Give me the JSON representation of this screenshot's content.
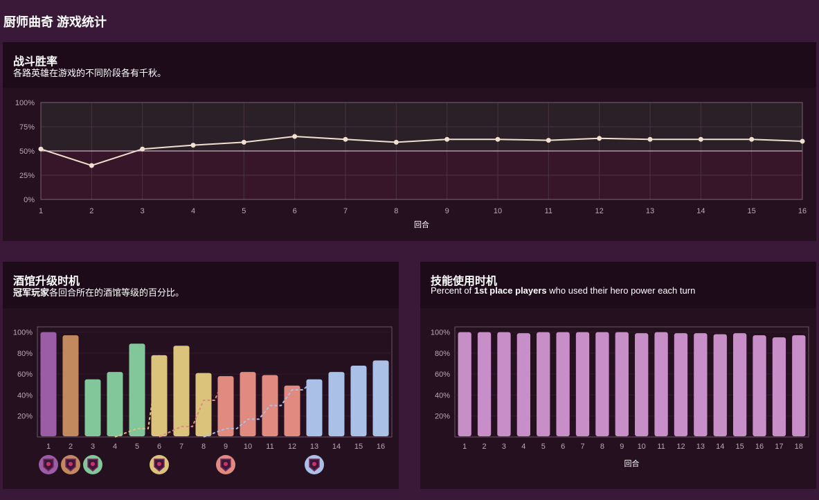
{
  "page": {
    "title": "厨师曲奇 游戏统计"
  },
  "colors": {
    "bg": "#3a1838",
    "panel": "#24101f",
    "panel_head": "#1d0b19",
    "line": "#f0e0d0",
    "tier_colors": [
      "#9a5da6",
      "#c2895f",
      "#82c79a",
      "#82c79a",
      "#82c79a",
      "#dcc37c",
      "#dcc37c",
      "#dcc37c",
      "#e08a80",
      "#e08a80",
      "#e08a80",
      "#e08a80",
      "#aac0e6",
      "#aac0e6",
      "#aac0e6",
      "#aac0e6"
    ],
    "hero_power": "#c88ec8"
  },
  "panels": {
    "winrate": {
      "title": "战斗胜率",
      "subtitle": "各路英雄在游戏的不同阶段各有千秋。"
    },
    "tavern": {
      "title": "酒馆升级时机",
      "subtitle_bold": "冠军玩家",
      "subtitle_rest": "各回合所在的酒馆等级的百分比。"
    },
    "hero_power": {
      "title": "技能使用时机",
      "subtitle_pre": "Percent of ",
      "subtitle_bold": "1st place players",
      "subtitle_post": " who used their hero power each turn"
    }
  },
  "chart_data": [
    {
      "type": "line",
      "title": "战斗胜率",
      "xlabel": "回合",
      "ylabel": "",
      "x": [
        1,
        2,
        3,
        4,
        5,
        6,
        7,
        8,
        9,
        10,
        11,
        12,
        13,
        14,
        15,
        16
      ],
      "y": [
        52,
        35,
        52,
        56,
        59,
        65,
        62,
        59,
        62,
        62,
        61,
        63,
        62,
        62,
        62,
        60
      ],
      "ylim": [
        0,
        100
      ],
      "yticks": [
        "0%",
        "25%",
        "50%",
        "75%",
        "100%"
      ],
      "reference_line": 50,
      "grid": true
    },
    {
      "type": "bar",
      "title": "酒馆升级时机",
      "xlabel": "",
      "categories": [
        "1",
        "2",
        "3",
        "4",
        "5",
        "6",
        "7",
        "8",
        "9",
        "10",
        "11",
        "12",
        "13",
        "14",
        "15",
        "16"
      ],
      "values": [
        100,
        97,
        55,
        62,
        89,
        78,
        87,
        61,
        58,
        62,
        59,
        49,
        55,
        62,
        68,
        73
      ],
      "ylim": [
        0,
        105
      ],
      "yticks": [
        "20%",
        "40%",
        "60%",
        "80%",
        "100%"
      ],
      "tier_upgrade_lines": [
        {
          "tier": 4,
          "color": "#dcc37c",
          "points": [
            [
              4,
              0
            ],
            [
              5,
              8
            ],
            [
              5.5,
              8
            ],
            [
              6,
              78
            ]
          ]
        },
        {
          "tier": 5,
          "color": "#e08a80",
          "points": [
            [
              6,
              0
            ],
            [
              7,
              10
            ],
            [
              7.5,
              10
            ],
            [
              8,
              35
            ],
            [
              8.5,
              35
            ],
            [
              9,
              58
            ]
          ]
        },
        {
          "tier": 6,
          "color": "#aac0e6",
          "points": [
            [
              8,
              0
            ],
            [
              9,
              8
            ],
            [
              9.5,
              8
            ],
            [
              10,
              17
            ],
            [
              10.5,
              17
            ],
            [
              11,
              30
            ],
            [
              11.5,
              30
            ],
            [
              12,
              45
            ],
            [
              12.5,
              45
            ],
            [
              13,
              55
            ]
          ]
        }
      ],
      "tier_badges": [
        {
          "turn": 1,
          "color": "#9a5da6"
        },
        {
          "turn": 2,
          "color": "#c2895f"
        },
        {
          "turn": 3,
          "color": "#82c79a"
        },
        {
          "turn": 6,
          "color": "#dcc37c"
        },
        {
          "turn": 9,
          "color": "#e08a80"
        },
        {
          "turn": 13,
          "color": "#aac0e6"
        }
      ]
    },
    {
      "type": "bar",
      "title": "技能使用时机",
      "xlabel": "回合",
      "categories": [
        "1",
        "2",
        "3",
        "4",
        "5",
        "6",
        "7",
        "8",
        "9",
        "10",
        "11",
        "12",
        "13",
        "14",
        "15",
        "16",
        "17",
        "18"
      ],
      "values": [
        100,
        100,
        100,
        99,
        100,
        100,
        100,
        100,
        100,
        99,
        100,
        99,
        99,
        98,
        99,
        97,
        95,
        97
      ],
      "ylim": [
        0,
        105
      ],
      "yticks": [
        "20%",
        "40%",
        "60%",
        "80%",
        "100%"
      ]
    }
  ]
}
